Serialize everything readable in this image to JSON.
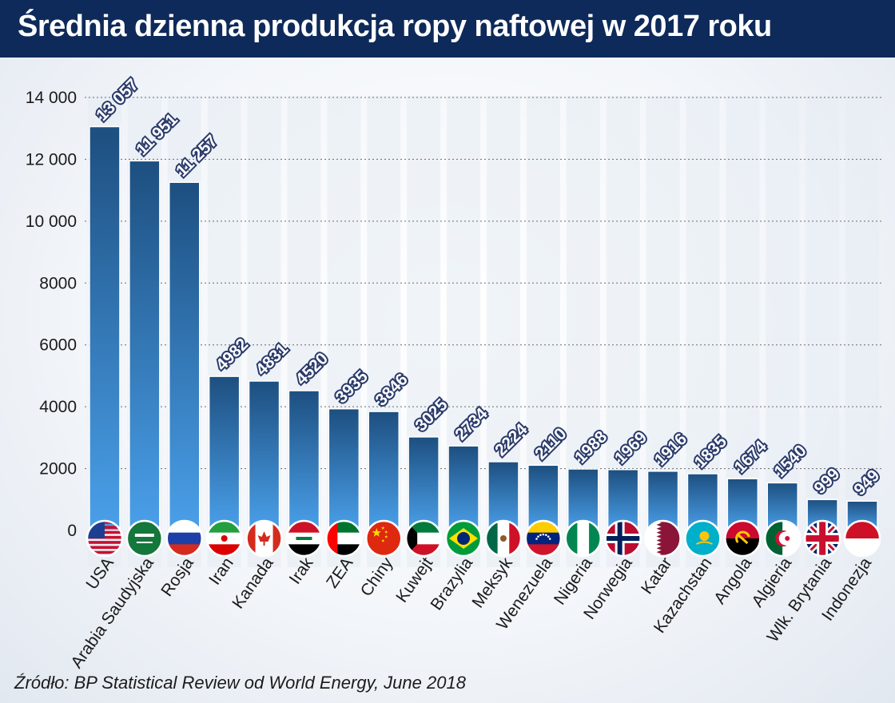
{
  "title": "Średnia dzienna produkcja ropy naftowej w 2017 roku",
  "source": "Źródło: BP Statistical Review od World Energy, June 2018",
  "colors": {
    "header": "#0e2a5a",
    "bar_top": "#1d4f80",
    "bar_bottom": "#4aa0ea"
  },
  "chart_data": {
    "type": "bar",
    "categories": [
      "USA",
      "Arabia Saudyjska",
      "Rosja",
      "Iran",
      "Kanada",
      "Irak",
      "ZEA",
      "Chiny",
      "Kuwejt",
      "Brazylia",
      "Meksyk",
      "Wenezuela",
      "Nigeria",
      "Norwegia",
      "Katar",
      "Kazachstan",
      "Angola",
      "Algieria",
      "Wlk. Brytania",
      "Indonezja"
    ],
    "values": [
      13057,
      11951,
      11257,
      4982,
      4831,
      4520,
      3935,
      3846,
      3025,
      2734,
      2224,
      2110,
      1988,
      1969,
      1916,
      1835,
      1674,
      1540,
      999,
      949
    ],
    "value_labels": [
      "13 057",
      "11 951",
      "11 257",
      "4982",
      "4831",
      "4520",
      "3935",
      "3846",
      "3025",
      "2734",
      "2224",
      "2110",
      "1988",
      "1969",
      "1916",
      "1835",
      "1674",
      "1540",
      "999",
      "949"
    ],
    "ylim": [
      0,
      14000
    ],
    "yticks": [
      0,
      2000,
      4000,
      6000,
      8000,
      10000,
      12000,
      14000
    ],
    "ytick_labels": [
      "0",
      "2000",
      "4000",
      "6000",
      "8000",
      "10 000",
      "12 000",
      "14 000"
    ],
    "grid": true,
    "flag_icons": [
      "flag-usa-icon",
      "flag-saudi-arabia-icon",
      "flag-russia-icon",
      "flag-iran-icon",
      "flag-canada-icon",
      "flag-iraq-icon",
      "flag-uae-icon",
      "flag-china-icon",
      "flag-kuwait-icon",
      "flag-brazil-icon",
      "flag-mexico-icon",
      "flag-venezuela-icon",
      "flag-nigeria-icon",
      "flag-norway-icon",
      "flag-qatar-icon",
      "flag-kazakhstan-icon",
      "flag-angola-icon",
      "flag-algeria-icon",
      "flag-uk-icon",
      "flag-indonesia-icon"
    ]
  }
}
